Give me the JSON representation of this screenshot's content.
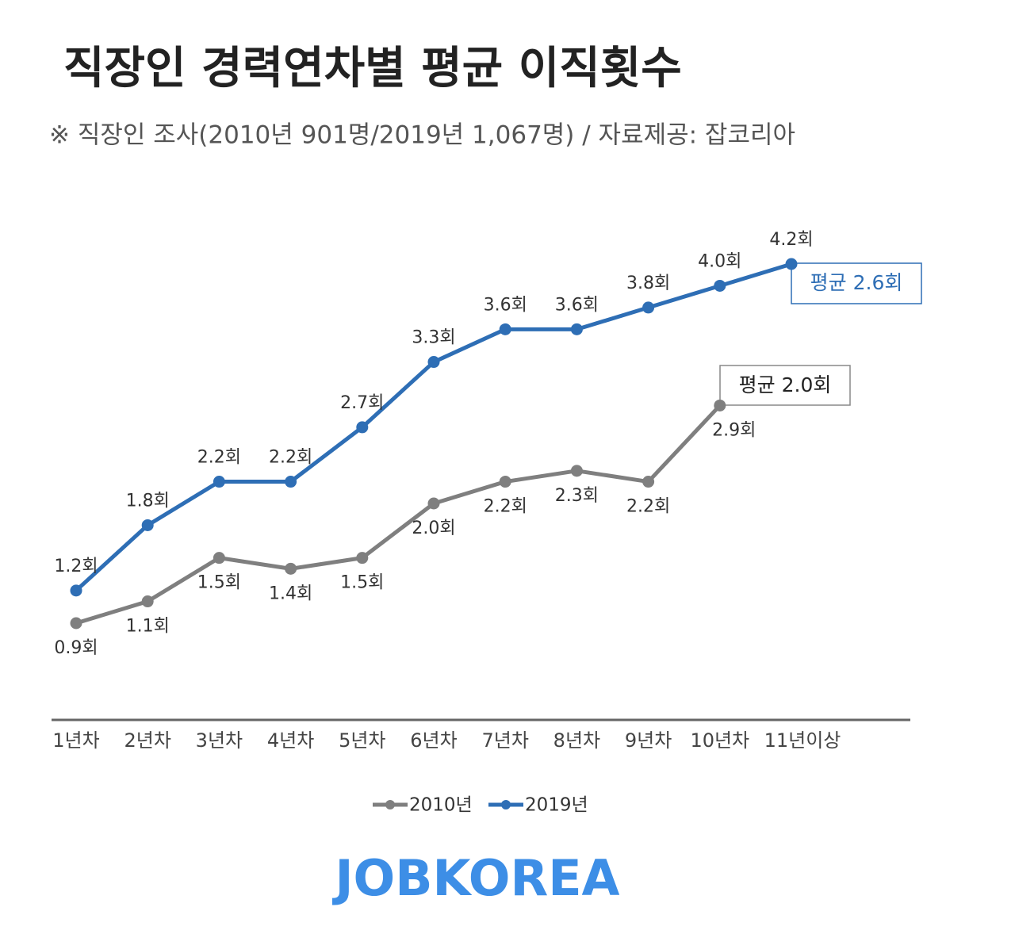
{
  "chart_data": {
    "type": "line",
    "title": "직장인 경력연차별 평균 이직횟수",
    "subtitle": "※ 직장인 조사(2010년 901명/2019년 1,067명) / 자료제공: 잡코리아",
    "categories": [
      "1년차",
      "2년차",
      "3년차",
      "4년차",
      "5년차",
      "6년차",
      "7년차",
      "8년차",
      "9년차",
      "10년차",
      "11년이상"
    ],
    "series": [
      {
        "name": "2010년",
        "color": "#7f7f7f",
        "values": [
          0.9,
          1.1,
          1.5,
          1.4,
          1.5,
          2.0,
          2.2,
          2.3,
          2.2,
          2.9,
          null
        ],
        "value_labels": [
          "0.9회",
          "1.1회",
          "1.5회",
          "1.4회",
          "1.5회",
          "2.0회",
          "2.2회",
          "2.3회",
          "2.2회",
          "2.9회",
          null
        ]
      },
      {
        "name": "2019년",
        "color": "#2e6eb5",
        "values": [
          1.2,
          1.8,
          2.2,
          2.2,
          2.7,
          3.3,
          3.6,
          3.6,
          3.8,
          4.0,
          4.2
        ],
        "value_labels": [
          "1.2회",
          "1.8회",
          "2.2회",
          "2.2회",
          "2.7회",
          "3.3회",
          "3.6회",
          "3.6회",
          "3.8회",
          "4.0회",
          "4.2회"
        ]
      }
    ],
    "annotations": [
      "평균 2.6회",
      "평균 2.0회"
    ],
    "legend": "bottom",
    "logo": "JOBKOREA"
  }
}
